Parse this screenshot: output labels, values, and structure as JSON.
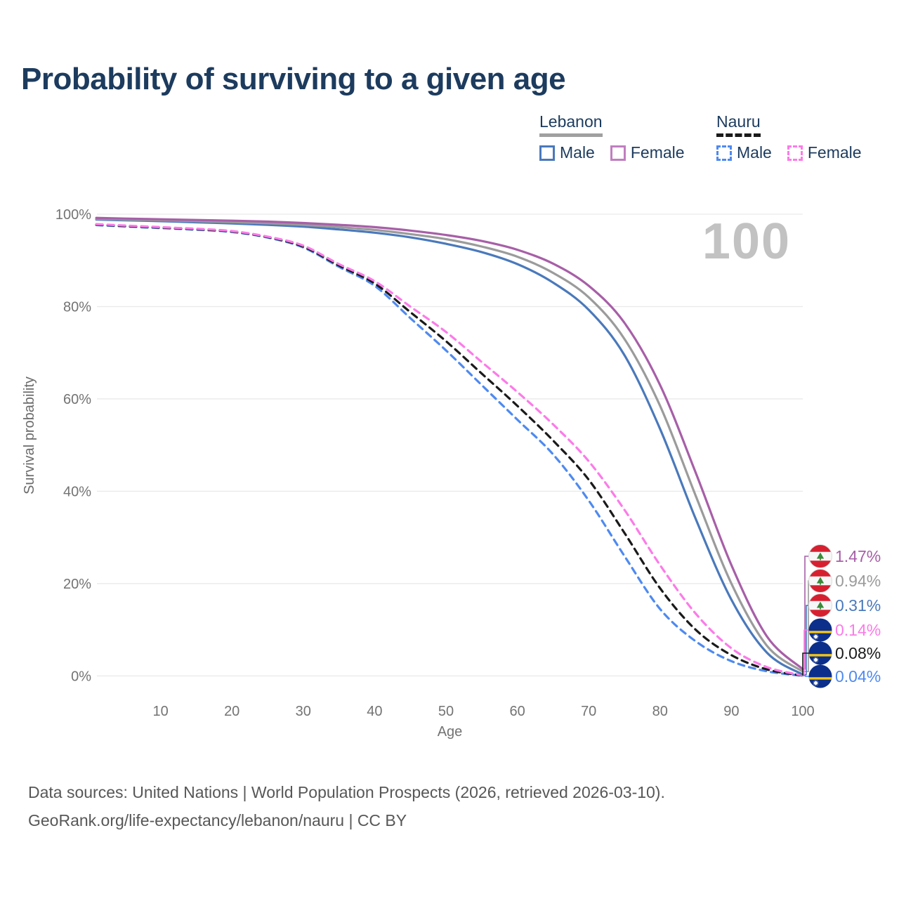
{
  "title": "Probability of surviving to a given age",
  "watermark": "100",
  "legend": {
    "groups": [
      {
        "label": "Lebanon",
        "line_style": "solid",
        "underline_color": "#a0a0a0",
        "items": [
          {
            "label": "Male",
            "color": "#4a79bb",
            "style": "solid"
          },
          {
            "label": "Female",
            "color": "#c07fc0",
            "style": "solid"
          }
        ]
      },
      {
        "label": "Nauru",
        "line_style": "dashed",
        "underline_color": "#1a1a1a",
        "items": [
          {
            "label": "Male",
            "color": "#4e8af0",
            "style": "dashed"
          },
          {
            "label": "Female",
            "color": "#fc7be8",
            "style": "dashed"
          }
        ]
      }
    ]
  },
  "chart_data": {
    "type": "line",
    "title": "Probability of surviving to a given age",
    "xlabel": "Age",
    "ylabel": "Survival probability",
    "xlim": [
      0,
      100
    ],
    "ylim": [
      0,
      100
    ],
    "grid": "horizontal",
    "legend_position": "top-right",
    "x_ticks": [
      10,
      20,
      30,
      40,
      50,
      60,
      70,
      80,
      90,
      100
    ],
    "y_ticks": [
      {
        "value": 0,
        "label": "0%"
      },
      {
        "value": 20,
        "label": "20%"
      },
      {
        "value": 40,
        "label": "40%"
      },
      {
        "value": 60,
        "label": "60%"
      },
      {
        "value": 80,
        "label": "80%"
      },
      {
        "value": 100,
        "label": "100%"
      }
    ],
    "x": [
      1,
      5,
      10,
      15,
      20,
      25,
      30,
      35,
      40,
      45,
      50,
      55,
      60,
      65,
      70,
      75,
      80,
      85,
      90,
      95,
      100
    ],
    "series": [
      {
        "name": "Nauru Male",
        "country": "Nauru",
        "sex": "Male",
        "color": "#4e8af0",
        "dash": "dashed",
        "flag": "nauru",
        "end_label": "0.04%",
        "values": [
          97.65,
          97.35,
          97.0,
          96.65,
          96.15,
          94.95,
          92.8,
          88.6,
          84.5,
          77.5,
          70.5,
          63.0,
          55.5,
          48.0,
          38.0,
          26.0,
          14.5,
          7.5,
          3.2,
          1.0,
          0.04
        ]
      },
      {
        "name": "Nauru",
        "country": "Nauru",
        "sex": "Both",
        "color": "#1a1a1a",
        "dash": "dashed",
        "flag": "nauru",
        "end_label": "0.08%",
        "values": [
          97.75,
          97.45,
          97.1,
          96.75,
          96.25,
          95.05,
          93.0,
          88.9,
          85.0,
          78.8,
          72.5,
          65.5,
          58.5,
          51.0,
          42.5,
          31.0,
          19.0,
          10.0,
          4.5,
          1.4,
          0.08
        ]
      },
      {
        "name": "Nauru Female",
        "country": "Nauru",
        "sex": "Female",
        "color": "#fc7be8",
        "dash": "dashed",
        "flag": "nauru",
        "end_label": "0.14%",
        "values": [
          97.85,
          97.55,
          97.2,
          96.85,
          96.35,
          95.15,
          93.2,
          89.2,
          85.5,
          80.0,
          74.5,
          68.0,
          61.5,
          54.5,
          46.5,
          36.0,
          24.0,
          13.5,
          6.0,
          1.9,
          0.14
        ]
      },
      {
        "name": "Lebanon Male",
        "country": "Lebanon",
        "sex": "Male",
        "color": "#4a79bb",
        "dash": "solid",
        "flag": "lebanon",
        "end_label": "0.31%",
        "values": [
          98.85,
          98.68,
          98.5,
          98.25,
          98.0,
          97.7,
          97.3,
          96.7,
          96.0,
          95.0,
          93.6,
          91.8,
          89.2,
          85.2,
          79.3,
          69.5,
          53.5,
          34.0,
          16.5,
          5.0,
          0.31
        ]
      },
      {
        "name": "Lebanon",
        "country": "Lebanon",
        "sex": "Both",
        "color": "#9b9b9b",
        "dash": "solid",
        "flag": "lebanon",
        "end_label": "0.94%",
        "values": [
          99.0,
          98.85,
          98.7,
          98.5,
          98.3,
          98.05,
          97.7,
          97.2,
          96.6,
          95.7,
          94.6,
          93.0,
          90.8,
          87.3,
          82.0,
          73.0,
          58.5,
          39.0,
          20.0,
          6.5,
          0.94
        ]
      },
      {
        "name": "Lebanon Female",
        "country": "Lebanon",
        "sex": "Female",
        "color": "#a75fa7",
        "dash": "solid",
        "flag": "lebanon",
        "end_label": "1.47%",
        "values": [
          99.2,
          99.05,
          98.9,
          98.75,
          98.6,
          98.4,
          98.1,
          97.7,
          97.2,
          96.45,
          95.5,
          94.2,
          92.3,
          89.3,
          84.5,
          76.5,
          63.0,
          44.0,
          24.0,
          8.5,
          1.47
        ]
      }
    ],
    "end_labels_order_top_to_bottom": [
      "1.47%",
      "0.94%",
      "0.31%",
      "0.14%",
      "0.08%",
      "0.04%"
    ],
    "flag_colors": {
      "lebanon_red": "#d62030",
      "lebanon_white": "#f7f7f7",
      "lebanon_cedar_green": "#3a8a3a",
      "nauru_blue": "#0b2f8a",
      "nauru_yellow": "#f3c514",
      "nauru_star_white": "#ffffff"
    }
  },
  "footer": {
    "line1": "Data sources: United Nations | World Population Prospects (2026, retrieved 2026-03-10).",
    "line2": "GeoRank.org/life-expectancy/lebanon/nauru | CC BY"
  }
}
